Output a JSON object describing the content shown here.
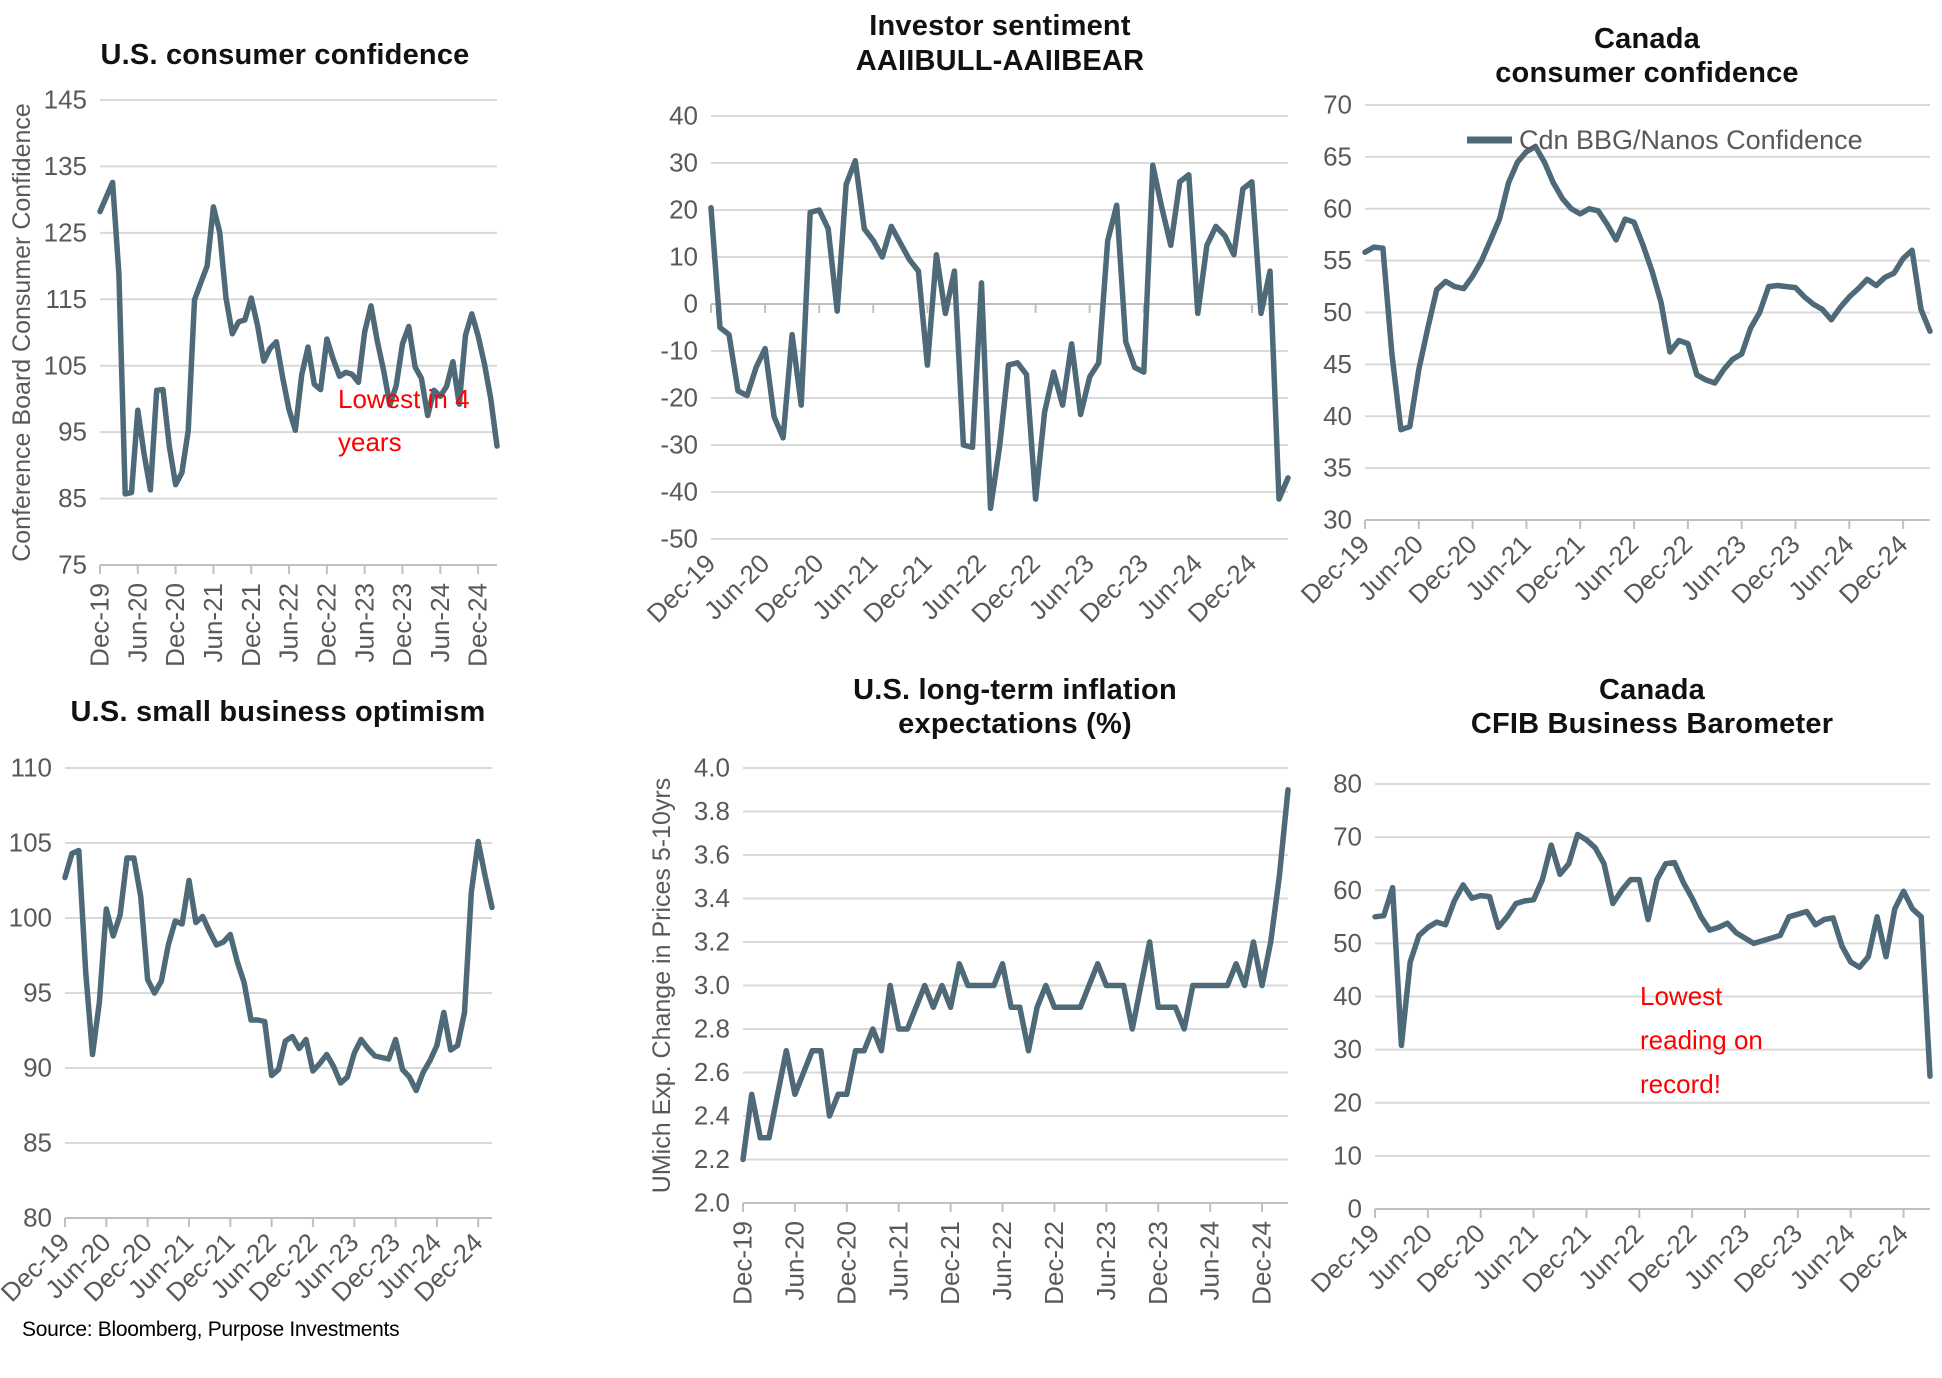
{
  "source_note": "Source: Bloomberg, Purpose Investments",
  "theme": {
    "line_color": "#4e6977",
    "grid_color": "#d9d9d9",
    "axis_line_color": "#bfbfbf",
    "tick_text_color": "#595959",
    "title_color": "#111111",
    "annotation_color": "#ff0000",
    "background": "#ffffff"
  },
  "x_tick_labels": [
    "Dec-19",
    "Jun-20",
    "Dec-20",
    "Jun-21",
    "Dec-21",
    "Jun-22",
    "Dec-22",
    "Jun-23",
    "Dec-23",
    "Jun-24",
    "Dec-24"
  ],
  "chart_data": [
    {
      "id": "us_consumer_confidence",
      "type": "line",
      "title": "U.S. consumer confidence",
      "ylabel": "Conference Board Consumer Confidence",
      "xlabel": "",
      "x_start": "Dec-19",
      "x_freq": "monthly",
      "ylim": [
        75,
        145
      ],
      "ystep": 10,
      "y_decimals": 0,
      "x_tick_rotation": 90,
      "grid": true,
      "annotation": "Lowest in 4\nyears",
      "values": [
        128.2,
        130.4,
        132.6,
        118.8,
        85.7,
        85.9,
        98.3,
        91.7,
        86.3,
        101.3,
        101.4,
        92.9,
        87.1,
        88.9,
        95.2,
        114.9,
        117.5,
        120.0,
        128.9,
        125.1,
        115.2,
        109.8,
        111.6,
        111.9,
        115.2,
        111.1,
        105.7,
        107.6,
        108.6,
        103.2,
        98.4,
        95.3,
        103.6,
        107.8,
        102.2,
        101.4,
        109.0,
        106.0,
        103.4,
        104.0,
        103.7,
        102.5,
        110.1,
        114.0,
        108.7,
        104.3,
        99.1,
        102.0,
        108.3,
        110.9,
        104.8,
        103.1,
        97.5,
        101.3,
        100.4,
        101.9,
        105.6,
        99.2,
        109.6,
        112.8,
        109.5,
        105.3,
        100.1,
        92.9
      ]
    },
    {
      "id": "investor_sentiment",
      "type": "line",
      "title": "Investor sentiment\nAAIIBULL-AAIIBEAR",
      "ylabel": "",
      "xlabel": "",
      "x_start": "Dec-19",
      "x_freq": "monthly",
      "ylim": [
        -50,
        40
      ],
      "ystep": 10,
      "y_decimals": 0,
      "x_tick_rotation": 45,
      "grid": true,
      "axis_at_value": 0,
      "values": [
        20.5,
        -5,
        -6.5,
        -18.5,
        -19.5,
        -13.5,
        -9.5,
        -24,
        -28.5,
        -6.5,
        -21.5,
        19.5,
        20,
        16,
        -1.5,
        25.5,
        30.5,
        16,
        13.5,
        10,
        16.5,
        13,
        9.5,
        7,
        -13,
        10.5,
        -2,
        7,
        -30,
        -30.5,
        4.5,
        -43.5,
        -30.5,
        -13,
        -12.5,
        -15,
        -41.5,
        -23,
        -14.5,
        -21.5,
        -8.5,
        -23.5,
        -15.5,
        -12.5,
        13.5,
        21,
        -8,
        -13.5,
        -14.5,
        29.5,
        20.5,
        12.5,
        26,
        27.5,
        -2,
        12.5,
        16.5,
        14.5,
        10.5,
        24.5,
        26,
        -2,
        7,
        -41.5,
        -37
      ]
    },
    {
      "id": "canada_consumer_confidence",
      "type": "line",
      "title": "Canada\nconsumer confidence",
      "ylabel": "",
      "xlabel": "",
      "x_start": "Dec-19",
      "x_freq": "monthly",
      "ylim": [
        30,
        70
      ],
      "ystep": 5,
      "y_decimals": 0,
      "x_tick_rotation": 45,
      "grid": true,
      "legend": {
        "label": "Cdn BBG/Nanos Confidence",
        "position": "top-right-inside"
      },
      "values": [
        55.8,
        56.3,
        56.2,
        46,
        38.7,
        39,
        44.5,
        48.5,
        52.2,
        53,
        52.5,
        52.3,
        53.5,
        55,
        57,
        59,
        62.5,
        64.5,
        65.5,
        66,
        64.5,
        62.5,
        61,
        60,
        59.5,
        60,
        59.8,
        58.5,
        57,
        59,
        58.7,
        56.5,
        54,
        51,
        46.2,
        47.3,
        47,
        44,
        43.5,
        43.2,
        44.5,
        45.5,
        46,
        48.5,
        50,
        52.5,
        52.6,
        52.5,
        52.4,
        51.5,
        50.8,
        50.3,
        49.3,
        50.5,
        51.5,
        52.3,
        53.2,
        52.6,
        53.4,
        53.8,
        55.2,
        56,
        50.3,
        48.2
      ]
    },
    {
      "id": "us_small_business_optimism",
      "type": "line",
      "title": "U.S. small business optimism",
      "ylabel": "",
      "xlabel": "",
      "x_start": "Dec-19",
      "x_freq": "monthly",
      "ylim": [
        80,
        110
      ],
      "ystep": 5,
      "y_decimals": 0,
      "x_tick_rotation": 45,
      "grid": true,
      "values": [
        102.7,
        104.3,
        104.5,
        96.4,
        90.9,
        94.4,
        100.6,
        98.8,
        100.2,
        104.0,
        104.0,
        101.4,
        95.9,
        95.0,
        95.8,
        98.2,
        99.8,
        99.6,
        102.5,
        99.7,
        100.1,
        99.1,
        98.2,
        98.4,
        98.9,
        97.1,
        95.7,
        93.2,
        93.2,
        93.1,
        89.5,
        89.9,
        91.8,
        92.1,
        91.3,
        91.9,
        89.8,
        90.3,
        90.9,
        90.1,
        89.0,
        89.4,
        91.0,
        91.9,
        91.3,
        90.8,
        90.7,
        90.6,
        91.9,
        89.9,
        89.4,
        88.5,
        89.7,
        90.5,
        91.5,
        93.7,
        91.2,
        91.5,
        93.7,
        101.7,
        105.1,
        102.8,
        100.7
      ]
    },
    {
      "id": "us_inflation_expectations",
      "type": "line",
      "title": "U.S. long-term inflation\nexpectations (%)",
      "ylabel": "UMich Exp. Change in Prices 5-10yrs",
      "xlabel": "",
      "x_start": "Dec-19",
      "x_freq": "monthly",
      "ylim": [
        2.0,
        4.0
      ],
      "ystep": 0.2,
      "y_decimals": 1,
      "x_tick_rotation": 90,
      "grid": true,
      "values": [
        2.2,
        2.5,
        2.3,
        2.3,
        2.5,
        2.7,
        2.5,
        2.6,
        2.7,
        2.7,
        2.4,
        2.5,
        2.5,
        2.7,
        2.7,
        2.8,
        2.7,
        3.0,
        2.8,
        2.8,
        2.9,
        3.0,
        2.9,
        3.0,
        2.9,
        3.1,
        3.0,
        3.0,
        3.0,
        3.0,
        3.1,
        2.9,
        2.9,
        2.7,
        2.9,
        3.0,
        2.9,
        2.9,
        2.9,
        2.9,
        3.0,
        3.1,
        3.0,
        3.0,
        3.0,
        2.8,
        3.0,
        3.2,
        2.9,
        2.9,
        2.9,
        2.8,
        3.0,
        3.0,
        3.0,
        3.0,
        3.0,
        3.1,
        3.0,
        3.2,
        3.0,
        3.2,
        3.5,
        3.9
      ]
    },
    {
      "id": "canada_cfib_barometer",
      "type": "line",
      "title": "Canada\nCFIB Business Barometer",
      "ylabel": "",
      "xlabel": "",
      "x_start": "Dec-19",
      "x_freq": "monthly",
      "ylim": [
        0,
        80
      ],
      "ystep": 10,
      "y_decimals": 0,
      "x_tick_rotation": 45,
      "grid": true,
      "annotation": "Lowest\nreading on\nrecord!",
      "values": [
        55,
        55.2,
        60.5,
        30.8,
        46.5,
        51.5,
        53,
        54,
        53.5,
        58,
        61,
        58.5,
        59,
        58.8,
        53,
        55,
        57.5,
        58,
        58.2,
        62,
        68.5,
        63,
        65,
        70.5,
        69.5,
        68,
        65,
        57.5,
        60,
        62,
        62,
        54.5,
        62,
        65,
        65.2,
        61.5,
        58.5,
        55,
        52.5,
        53,
        53.8,
        52,
        51,
        50,
        50.5,
        51,
        51.5,
        55,
        55.5,
        56,
        53.5,
        54.5,
        54.8,
        49.5,
        46.5,
        45.5,
        47.5,
        55,
        47.5,
        56.5,
        59.8,
        56.5,
        55,
        25
      ]
    }
  ]
}
